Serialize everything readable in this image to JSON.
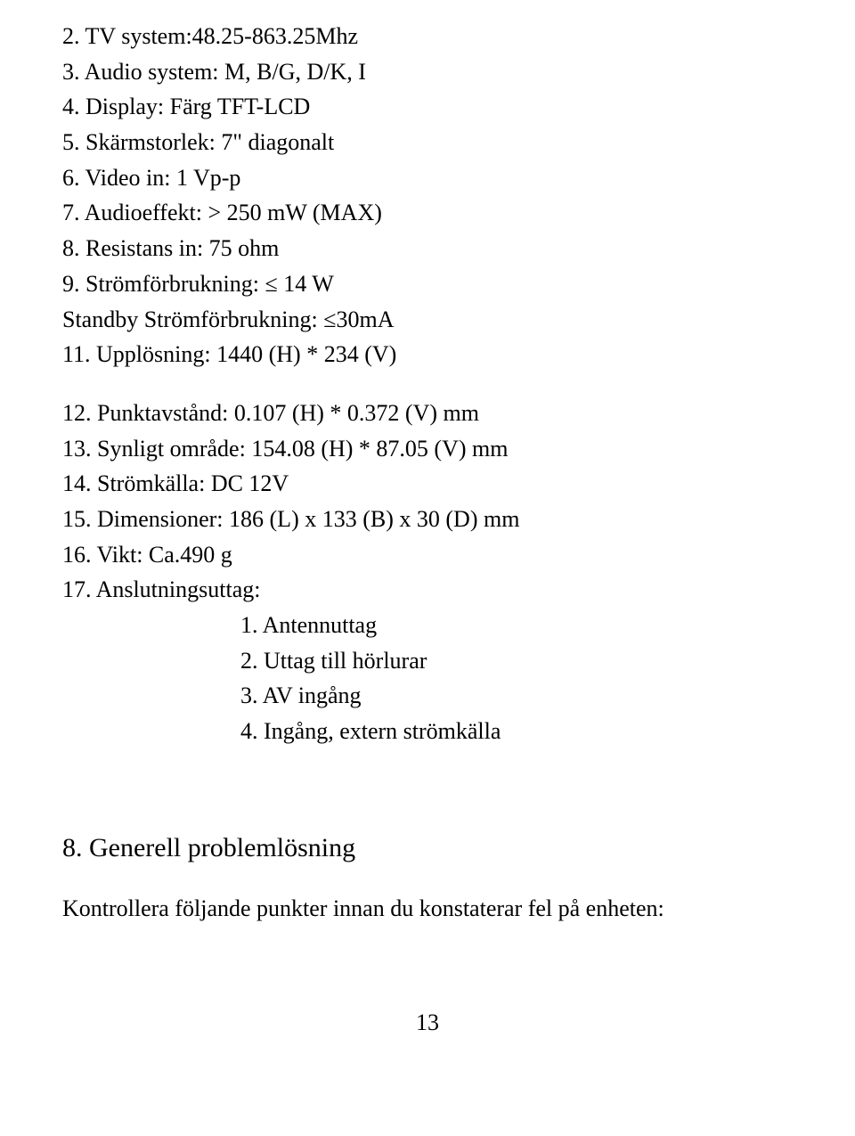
{
  "specs": {
    "l2": "2. TV system:48.25-863.25Mhz",
    "l3": "3. Audio system: M, B/G, D/K, I",
    "l4": "4. Display: Färg TFT-LCD",
    "l5": "5. Skärmstorlek: 7\" diagonalt",
    "l6": "6. Video in: 1 Vp-p",
    "l7": "7. Audioeffekt: > 250 mW (MAX)",
    "l8": "8. Resistans in: 75 ohm",
    "l9": "9. Strömförbrukning: ≤ 14 W",
    "l9b": "Standby Strömförbrukning: ≤30mA",
    "l11": "11. Upplösning: 1440 (H) * 234 (V)",
    "l12": "12. Punktavstånd: 0.107 (H) * 0.372 (V) mm",
    "l13": "13. Synligt område: 154.08 (H) * 87.05 (V) mm",
    "l14": "14. Strömkälla: DC 12V",
    "l15": "15. Dimensioner: 186 (L) x 133 (B) x 30 (D) mm",
    "l16": "16. Vikt: Ca.490 g",
    "l17": "17. Anslutningsuttag:",
    "s1": "1. Antennuttag",
    "s2": "2. Uttag till hörlurar",
    "s3": "3. AV ingång",
    "s4": "4. Ingång, extern strömkälla"
  },
  "section": {
    "heading": "8. Generell problemlösning",
    "intro": "Kontrollera följande punkter innan du konstaterar fel på enheten:"
  },
  "page_number": "13"
}
